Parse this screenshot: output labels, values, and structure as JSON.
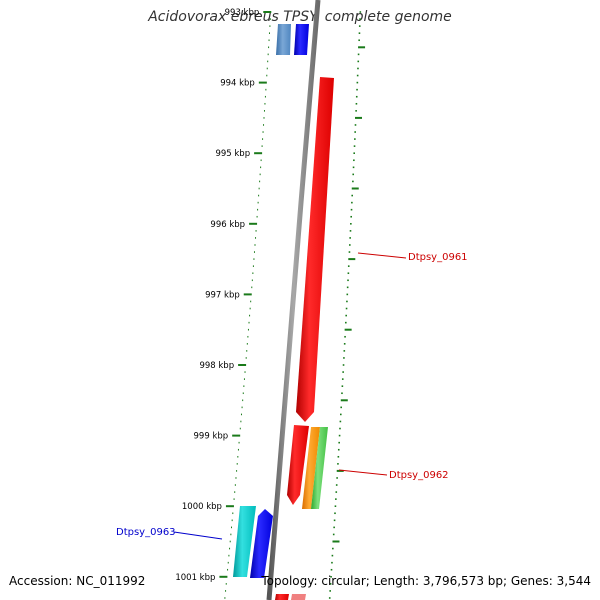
{
  "title": "Acidovorax ebreus TPSY, complete genome",
  "footer": {
    "accession": "Accession: NC_011992",
    "summary": "Topology: circular; Length: 3,796,573 bp; Genes: 3,544"
  },
  "ticks": [
    {
      "label": "993 kbp",
      "kbp": 993
    },
    {
      "label": "994 kbp",
      "kbp": 994
    },
    {
      "label": "995 kbp",
      "kbp": 995
    },
    {
      "label": "996 kbp",
      "kbp": 996
    },
    {
      "label": "997 kbp",
      "kbp": 997
    },
    {
      "label": "998 kbp",
      "kbp": 998
    },
    {
      "label": "999 kbp",
      "kbp": 999
    },
    {
      "label": "1000 kbp",
      "kbp": 1000
    },
    {
      "label": "1001 kbp",
      "kbp": 1001
    }
  ],
  "gene_labels": [
    {
      "label": "Dtpsy_0961",
      "color": "#cc0000"
    },
    {
      "label": "Dtpsy_0962",
      "color": "#cc0000"
    },
    {
      "label": "Dtpsy_0963",
      "color": "#0000cc"
    }
  ],
  "colors": {
    "backbone": "#808080",
    "tick": "#1a7a1a",
    "forward_gene": "#ff0000",
    "reverse_gene": "#0000ff"
  }
}
